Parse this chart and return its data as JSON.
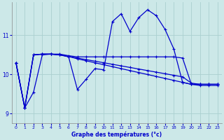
{
  "xlabel": "Graphe des températures (°c)",
  "bg_color": "#cce8e8",
  "grid_color": "#aad0d0",
  "line_color": "#0000cc",
  "xlim": [
    -0.5,
    23.5
  ],
  "ylim": [
    8.75,
    11.85
  ],
  "yticks": [
    9,
    10,
    11
  ],
  "xticks": [
    0,
    1,
    2,
    3,
    4,
    5,
    6,
    7,
    8,
    9,
    10,
    11,
    12,
    13,
    14,
    15,
    16,
    17,
    18,
    19,
    20,
    21,
    22,
    23
  ],
  "series_zigzag_x": [
    0,
    1,
    2,
    3,
    4,
    5,
    6,
    7,
    8,
    9,
    10,
    11,
    12,
    13,
    14,
    15,
    16,
    17,
    18,
    19,
    20,
    21,
    22,
    23
  ],
  "series_zigzag_y": [
    10.3,
    9.15,
    9.55,
    10.5,
    10.52,
    10.5,
    10.45,
    9.62,
    9.88,
    10.15,
    10.12,
    11.35,
    11.55,
    11.1,
    11.45,
    11.65,
    11.5,
    11.15,
    10.65,
    9.8,
    9.75,
    9.75,
    9.75,
    9.75
  ],
  "series_flat_x": [
    0,
    1,
    2,
    3,
    4,
    5,
    6,
    7,
    8,
    9,
    10,
    11,
    12,
    13,
    14,
    15,
    16,
    17,
    18,
    19,
    20,
    21,
    22,
    23
  ],
  "series_flat_y": [
    10.3,
    9.15,
    10.5,
    10.52,
    10.52,
    10.52,
    10.48,
    10.45,
    10.45,
    10.45,
    10.45,
    10.45,
    10.45,
    10.45,
    10.45,
    10.45,
    10.45,
    10.45,
    10.45,
    10.42,
    9.75,
    9.75,
    9.75,
    9.75
  ],
  "series_decline1_x": [
    0,
    1,
    2,
    3,
    4,
    5,
    6,
    7,
    8,
    9,
    10,
    11,
    12,
    13,
    14,
    15,
    16,
    17,
    18,
    19,
    20,
    21,
    22,
    23
  ],
  "series_decline1_y": [
    10.3,
    9.15,
    10.5,
    10.52,
    10.52,
    10.5,
    10.46,
    10.42,
    10.38,
    10.34,
    10.3,
    10.26,
    10.22,
    10.18,
    10.14,
    10.1,
    10.06,
    10.02,
    9.98,
    9.94,
    9.78,
    9.75,
    9.75,
    9.75
  ],
  "series_decline2_x": [
    0,
    1,
    2,
    3,
    4,
    5,
    6,
    7,
    8,
    9,
    10,
    11,
    12,
    13,
    14,
    15,
    16,
    17,
    18,
    19,
    20,
    21,
    22,
    23
  ],
  "series_decline2_y": [
    10.3,
    9.15,
    10.5,
    10.52,
    10.52,
    10.5,
    10.46,
    10.4,
    10.35,
    10.3,
    10.25,
    10.2,
    10.15,
    10.1,
    10.05,
    10.0,
    9.95,
    9.9,
    9.85,
    9.8,
    9.75,
    9.72,
    9.72,
    9.72
  ]
}
